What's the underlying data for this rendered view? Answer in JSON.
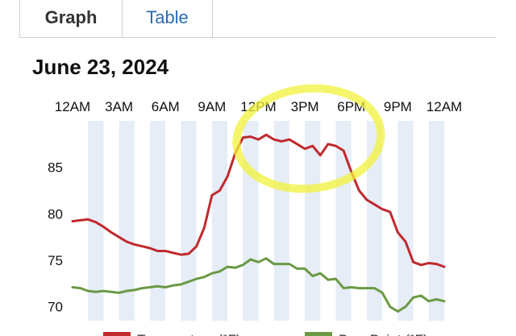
{
  "tabs": {
    "graph": "Graph",
    "table": "Table"
  },
  "date_title": "June 23, 2024",
  "chart_data": {
    "type": "line",
    "title": "June 23, 2024",
    "x_ticks": [
      "12AM",
      "3AM",
      "6AM",
      "9AM",
      "12PM",
      "3PM",
      "6PM",
      "9PM",
      "12AM"
    ],
    "y_ticks": [
      70,
      75,
      80,
      85
    ],
    "ylim": [
      68.5,
      90
    ],
    "xlim": [
      0,
      24
    ],
    "grid": "alternating vertical hour bands",
    "legend_position": "bottom",
    "highlight": {
      "type": "yellow circle annotation",
      "x_range": [
        11.2,
        19.3
      ]
    },
    "series": [
      {
        "name": "Temperature (°F)",
        "color": "#c0292e",
        "x": [
          0,
          0.5,
          1,
          1.5,
          2,
          2.5,
          3,
          3.5,
          4,
          4.5,
          5,
          5.5,
          6,
          6.5,
          7,
          7.5,
          8,
          8.5,
          9,
          9.2,
          9.5,
          10,
          10.5,
          11,
          11.5,
          12,
          12.5,
          13,
          13.5,
          14,
          14.5,
          15,
          15.5,
          16,
          16.5,
          17,
          17.5,
          18,
          18.5,
          19,
          19.5,
          20,
          20.5,
          21,
          21.5,
          22,
          22.5,
          23,
          23.5,
          24
        ],
        "values": [
          79.2,
          79.3,
          79.4,
          79.1,
          78.6,
          78.0,
          77.5,
          77.0,
          76.7,
          76.5,
          76.3,
          76.0,
          76.0,
          75.8,
          75.6,
          75.7,
          76.5,
          78.5,
          82.0,
          82.2,
          82.5,
          84.0,
          86.5,
          88.2,
          88.3,
          88.0,
          88.5,
          88.0,
          87.8,
          88.0,
          87.5,
          87.0,
          87.3,
          86.3,
          87.5,
          87.3,
          86.8,
          84.5,
          82.5,
          81.5,
          81.0,
          80.5,
          80.2,
          78.0,
          77.0,
          74.8,
          74.5,
          74.7,
          74.6,
          74.3
        ]
      },
      {
        "name": "Dew Point (°F)",
        "color": "#6a9a45",
        "x": [
          0,
          0.5,
          1,
          1.5,
          2,
          2.5,
          3,
          3.5,
          4,
          4.5,
          5,
          5.5,
          6,
          6.5,
          7,
          7.5,
          8,
          8.5,
          9,
          9.5,
          10,
          10.5,
          11,
          11.5,
          12,
          12.5,
          13,
          13.5,
          14,
          14.5,
          15,
          15.5,
          16,
          16.5,
          17,
          17.5,
          18,
          18.5,
          19,
          19.5,
          20,
          20.5,
          21,
          21.5,
          22,
          22.5,
          23,
          23.5,
          24
        ],
        "values": [
          72.1,
          72.0,
          71.7,
          71.6,
          71.7,
          71.6,
          71.5,
          71.7,
          71.8,
          72.0,
          72.1,
          72.2,
          72.1,
          72.3,
          72.4,
          72.7,
          73.0,
          73.2,
          73.6,
          73.8,
          74.3,
          74.2,
          74.5,
          75.1,
          74.8,
          75.2,
          74.6,
          74.6,
          74.6,
          74.1,
          74.1,
          73.3,
          73.6,
          72.9,
          73.0,
          72.0,
          72.1,
          72.0,
          72.0,
          72.0,
          71.5,
          70.0,
          69.5,
          70.0,
          71.0,
          71.2,
          70.6,
          70.8,
          70.6
        ]
      }
    ]
  }
}
